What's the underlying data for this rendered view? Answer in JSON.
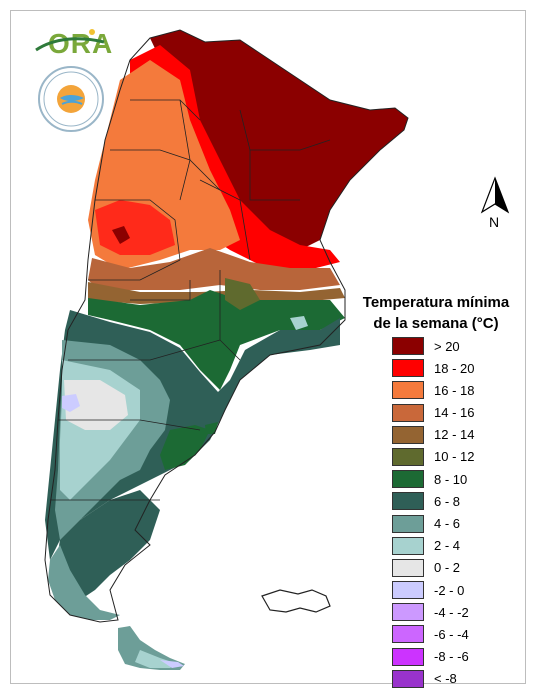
{
  "logo": {
    "text": "ORA",
    "seal_text": "SERVICIO METEOROLÓGICO NACIONAL",
    "seal_country": "ARGENTINA"
  },
  "north": {
    "letter": "N"
  },
  "legend": {
    "title_line1": "Temperatura mínima",
    "title_line2": "de la semana (°C)",
    "items": [
      {
        "label": "> 20",
        "color": "#8b0000"
      },
      {
        "label": "18 - 20",
        "color": "#ff0000"
      },
      {
        "label": "16 - 18",
        "color": "#f47a3c"
      },
      {
        "label": "14 - 16",
        "color": "#c9683a"
      },
      {
        "label": "12 - 14",
        "color": "#946432"
      },
      {
        "label": "10 - 12",
        "color": "#5f6a2e"
      },
      {
        "label": "8 - 10",
        "color": "#1c6a34"
      },
      {
        "label": "6 - 8",
        "color": "#2f5f57"
      },
      {
        "label": "4 - 6",
        "color": "#6d9e98"
      },
      {
        "label": "2 - 4",
        "color": "#a7d2cf"
      },
      {
        "label": "0 - 2",
        "color": "#e6e6e6"
      },
      {
        "label": "-2 - 0",
        "color": "#ccccff"
      },
      {
        "label": "-4 - -2",
        "color": "#cc99ff"
      },
      {
        "label": "-6 - -4",
        "color": "#cc66ff"
      },
      {
        "label": "-8 - -6",
        "color": "#cc33ff"
      },
      {
        "label": "< -8",
        "color": "#9933cc"
      }
    ]
  }
}
